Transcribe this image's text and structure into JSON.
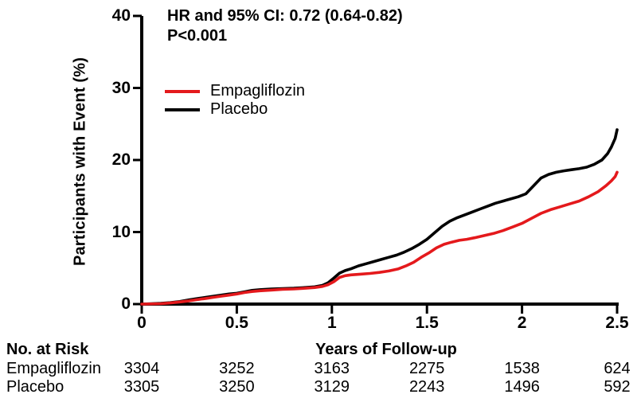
{
  "chart_data": {
    "type": "line",
    "title": "",
    "annotation": {
      "line1": "HR and 95% CI: 0.72 (0.64-0.82)",
      "line2": "P<0.001"
    },
    "ylabel": "Participants with Event (%)",
    "xlabel": "Years of Follow-up",
    "ylim": [
      0,
      40
    ],
    "xlim": [
      0,
      2.5
    ],
    "yticks": [
      "0",
      "10",
      "20",
      "30",
      "40"
    ],
    "xticks": [
      "0",
      "0.5",
      "1",
      "1.5",
      "2",
      "2.5"
    ],
    "grid": false,
    "legend_position": "upper-left-inside",
    "series": [
      {
        "name": "Empagliflozin",
        "color": "#e4191c",
        "points": [
          [
            0,
            0
          ],
          [
            0.1,
            0.05
          ],
          [
            0.15,
            0.15
          ],
          [
            0.2,
            0.3
          ],
          [
            0.25,
            0.45
          ],
          [
            0.3,
            0.65
          ],
          [
            0.34,
            0.8
          ],
          [
            0.38,
            0.95
          ],
          [
            0.42,
            1.1
          ],
          [
            0.46,
            1.25
          ],
          [
            0.5,
            1.4
          ],
          [
            0.54,
            1.6
          ],
          [
            0.58,
            1.75
          ],
          [
            0.62,
            1.85
          ],
          [
            0.68,
            1.95
          ],
          [
            0.74,
            2.05
          ],
          [
            0.8,
            2.1
          ],
          [
            0.86,
            2.2
          ],
          [
            0.91,
            2.3
          ],
          [
            0.95,
            2.45
          ],
          [
            0.98,
            2.7
          ],
          [
            1.01,
            3.1
          ],
          [
            1.04,
            3.7
          ],
          [
            1.07,
            3.95
          ],
          [
            1.1,
            4.05
          ],
          [
            1.15,
            4.15
          ],
          [
            1.2,
            4.25
          ],
          [
            1.25,
            4.4
          ],
          [
            1.3,
            4.6
          ],
          [
            1.35,
            4.9
          ],
          [
            1.39,
            5.3
          ],
          [
            1.43,
            5.8
          ],
          [
            1.47,
            6.5
          ],
          [
            1.51,
            7.1
          ],
          [
            1.55,
            7.8
          ],
          [
            1.59,
            8.3
          ],
          [
            1.63,
            8.6
          ],
          [
            1.67,
            8.85
          ],
          [
            1.71,
            9.0
          ],
          [
            1.75,
            9.2
          ],
          [
            1.8,
            9.5
          ],
          [
            1.85,
            9.8
          ],
          [
            1.9,
            10.2
          ],
          [
            1.95,
            10.7
          ],
          [
            2.0,
            11.2
          ],
          [
            2.05,
            11.9
          ],
          [
            2.1,
            12.6
          ],
          [
            2.15,
            13.1
          ],
          [
            2.2,
            13.5
          ],
          [
            2.25,
            13.9
          ],
          [
            2.3,
            14.3
          ],
          [
            2.35,
            14.9
          ],
          [
            2.4,
            15.6
          ],
          [
            2.44,
            16.4
          ],
          [
            2.47,
            17.1
          ],
          [
            2.49,
            17.7
          ],
          [
            2.5,
            18.3
          ]
        ]
      },
      {
        "name": "Placebo",
        "color": "#000000",
        "points": [
          [
            0,
            0
          ],
          [
            0.1,
            0.1
          ],
          [
            0.15,
            0.2
          ],
          [
            0.2,
            0.35
          ],
          [
            0.25,
            0.6
          ],
          [
            0.3,
            0.8
          ],
          [
            0.34,
            0.95
          ],
          [
            0.38,
            1.1
          ],
          [
            0.42,
            1.25
          ],
          [
            0.46,
            1.4
          ],
          [
            0.5,
            1.5
          ],
          [
            0.54,
            1.7
          ],
          [
            0.58,
            1.9
          ],
          [
            0.62,
            2.0
          ],
          [
            0.68,
            2.1
          ],
          [
            0.74,
            2.15
          ],
          [
            0.8,
            2.2
          ],
          [
            0.86,
            2.3
          ],
          [
            0.91,
            2.4
          ],
          [
            0.95,
            2.6
          ],
          [
            0.98,
            2.95
          ],
          [
            1.01,
            3.6
          ],
          [
            1.04,
            4.3
          ],
          [
            1.07,
            4.65
          ],
          [
            1.1,
            4.9
          ],
          [
            1.14,
            5.3
          ],
          [
            1.18,
            5.6
          ],
          [
            1.22,
            5.9
          ],
          [
            1.26,
            6.2
          ],
          [
            1.3,
            6.5
          ],
          [
            1.34,
            6.8
          ],
          [
            1.38,
            7.2
          ],
          [
            1.42,
            7.7
          ],
          [
            1.46,
            8.3
          ],
          [
            1.5,
            9.0
          ],
          [
            1.54,
            9.9
          ],
          [
            1.58,
            10.8
          ],
          [
            1.62,
            11.5
          ],
          [
            1.66,
            12.0
          ],
          [
            1.7,
            12.4
          ],
          [
            1.74,
            12.8
          ],
          [
            1.78,
            13.2
          ],
          [
            1.82,
            13.6
          ],
          [
            1.86,
            14.0
          ],
          [
            1.9,
            14.3
          ],
          [
            1.94,
            14.6
          ],
          [
            1.98,
            14.9
          ],
          [
            2.02,
            15.3
          ],
          [
            2.06,
            16.4
          ],
          [
            2.1,
            17.5
          ],
          [
            2.14,
            18.0
          ],
          [
            2.18,
            18.3
          ],
          [
            2.22,
            18.5
          ],
          [
            2.26,
            18.65
          ],
          [
            2.3,
            18.8
          ],
          [
            2.34,
            19.0
          ],
          [
            2.38,
            19.4
          ],
          [
            2.42,
            20.0
          ],
          [
            2.45,
            20.9
          ],
          [
            2.47,
            21.8
          ],
          [
            2.49,
            23.0
          ],
          [
            2.5,
            24.2
          ]
        ]
      }
    ]
  },
  "risk_table": {
    "title": "No. at Risk",
    "rows": [
      {
        "label": "Empagliflozin",
        "values": [
          "3304",
          "3252",
          "3163",
          "2275",
          "1538",
          "624"
        ]
      },
      {
        "label": "Placebo",
        "values": [
          "3305",
          "3250",
          "3129",
          "2243",
          "1496",
          "592"
        ]
      }
    ]
  },
  "colors": {
    "empagliflozin": "#e4191c",
    "placebo": "#000000",
    "axis": "#000000",
    "background": "#ffffff"
  }
}
